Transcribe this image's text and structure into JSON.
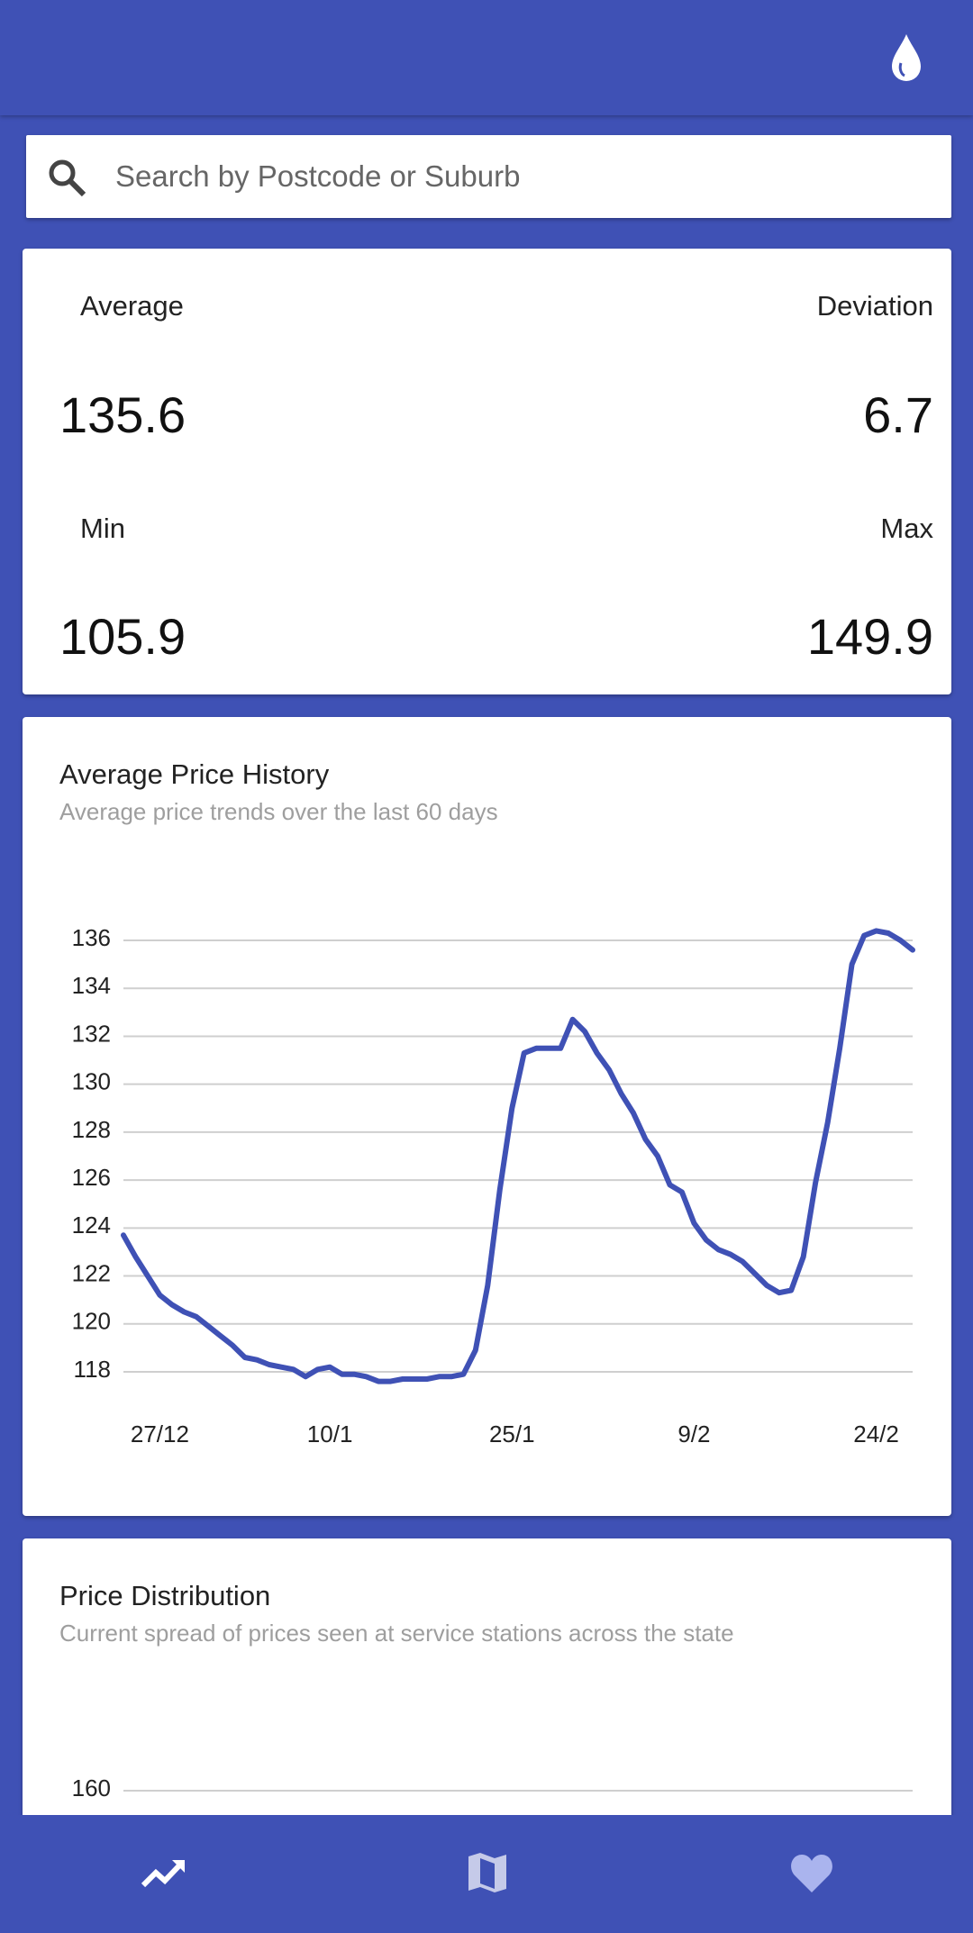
{
  "search": {
    "placeholder": "Search by Postcode or Suburb"
  },
  "stats": {
    "average_label": "Average",
    "average": 135.6,
    "deviation_label": "Deviation",
    "deviation": 6.7,
    "min_label": "Min",
    "min": 105.9,
    "max_label": "Max",
    "max": 149.9
  },
  "chart_data": [
    {
      "type": "line",
      "title": "Average Price History",
      "subtitle": "Average price trends over the last 60 days",
      "x": [
        "24/12",
        "25/12",
        "26/12",
        "27/12",
        "28/12",
        "29/12",
        "30/12",
        "31/12",
        "1/1",
        "2/1",
        "3/1",
        "4/1",
        "5/1",
        "6/1",
        "7/1",
        "8/1",
        "9/1",
        "10/1",
        "11/1",
        "12/1",
        "13/1",
        "14/1",
        "15/1",
        "16/1",
        "17/1",
        "18/1",
        "19/1",
        "20/1",
        "21/1",
        "22/1",
        "23/1",
        "24/1",
        "25/1",
        "26/1",
        "27/1",
        "28/1",
        "29/1",
        "30/1",
        "31/1",
        "1/2",
        "2/2",
        "3/2",
        "4/2",
        "5/2",
        "6/2",
        "7/2",
        "8/2",
        "9/2",
        "10/2",
        "11/2",
        "12/2",
        "13/2",
        "14/2",
        "15/2",
        "16/2",
        "17/2",
        "18/2",
        "19/2",
        "20/2",
        "21/2",
        "22/2",
        "23/2",
        "24/2",
        "25/2",
        "26/2",
        "27/2"
      ],
      "series": [
        {
          "name": "Average",
          "color": "#3f51b5",
          "values": [
            123.7,
            122.8,
            122.0,
            121.2,
            120.8,
            120.5,
            120.3,
            119.9,
            119.5,
            119.1,
            118.6,
            118.5,
            118.3,
            118.2,
            118.1,
            117.8,
            118.1,
            118.2,
            117.9,
            117.9,
            117.8,
            117.6,
            117.6,
            117.7,
            117.7,
            117.7,
            117.8,
            117.8,
            117.9,
            118.9,
            121.6,
            125.6,
            129.0,
            131.3,
            131.5,
            131.5,
            131.5,
            132.7,
            132.2,
            131.3,
            130.6,
            129.6,
            128.8,
            127.7,
            127.0,
            125.8,
            125.5,
            124.2,
            123.5,
            123.1,
            122.9,
            122.6,
            122.1,
            121.6,
            121.3,
            121.4,
            122.8,
            125.9,
            128.4,
            131.5,
            135.0,
            136.2,
            136.4,
            136.3,
            136.0,
            135.6
          ]
        }
      ],
      "xticks": [
        "27/12",
        "10/1",
        "25/1",
        "9/2",
        "24/2"
      ],
      "ylim": [
        118,
        136
      ],
      "yticks": [
        118,
        120,
        122,
        124,
        126,
        128,
        130,
        132,
        134,
        136
      ],
      "grid": true
    },
    {
      "type": "line",
      "title": "Price Distribution",
      "subtitle": "Current spread of prices seen at service stations across the state",
      "yticks": [
        160
      ],
      "grid": true
    }
  ]
}
